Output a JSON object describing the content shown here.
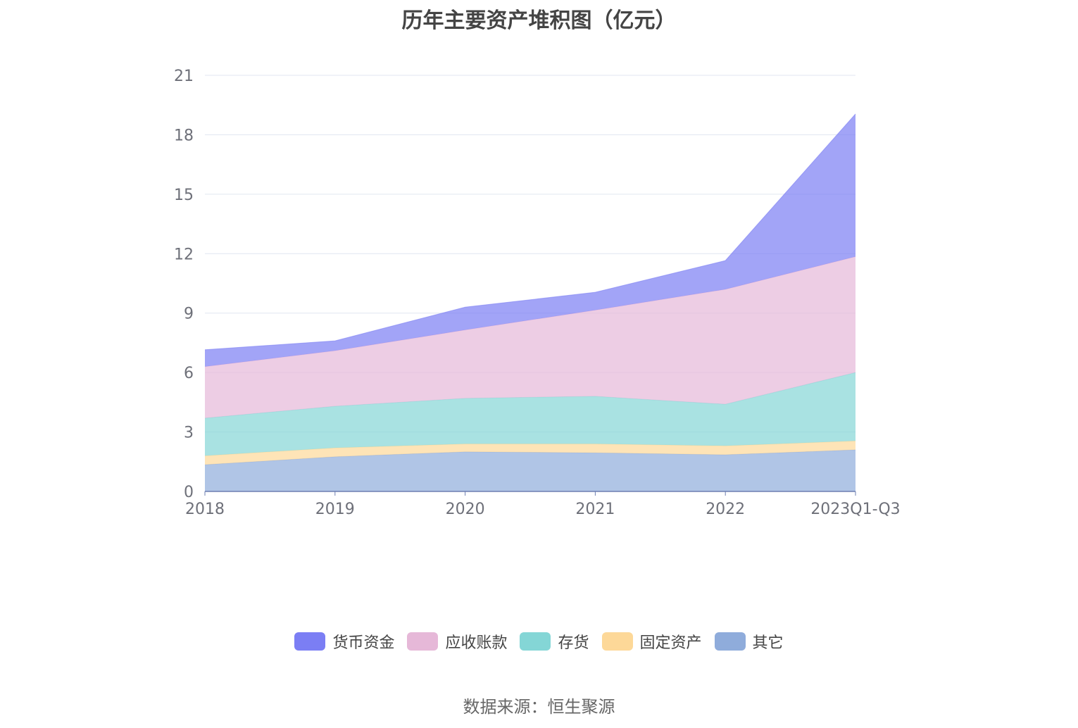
{
  "chart_data": {
    "type": "area",
    "stacked": true,
    "title": "历年主要资产堆积图（亿元）",
    "categories": [
      "2018",
      "2019",
      "2020",
      "2021",
      "2022",
      "2023Q1-Q3"
    ],
    "ylim": [
      0,
      21
    ],
    "yticks": [
      "0",
      "3",
      "6",
      "9",
      "12",
      "15",
      "18",
      "21"
    ],
    "grid": true,
    "legend_position": "bottom",
    "series": [
      {
        "name": "其它",
        "color": "#8facdb",
        "values": [
          1.35,
          1.75,
          2.0,
          1.95,
          1.85,
          2.1
        ]
      },
      {
        "name": "固定资产",
        "color": "#fdd898",
        "values": [
          0.45,
          0.45,
          0.4,
          0.45,
          0.45,
          0.45
        ]
      },
      {
        "name": "存货",
        "color": "#84d6d6",
        "values": [
          1.9,
          2.1,
          2.3,
          2.4,
          2.1,
          3.45
        ]
      },
      {
        "name": "应收账款",
        "color": "#e6b8d8",
        "values": [
          2.6,
          2.8,
          3.45,
          4.35,
          5.8,
          5.85
        ]
      },
      {
        "name": "货币资金",
        "color": "#7b7ef4",
        "values": [
          0.85,
          0.5,
          1.15,
          0.9,
          1.45,
          7.2
        ]
      }
    ],
    "legend_order": [
      "货币资金",
      "应收账款",
      "存货",
      "固定资产",
      "其它"
    ]
  },
  "footer": {
    "source": "数据来源：恒生聚源"
  }
}
